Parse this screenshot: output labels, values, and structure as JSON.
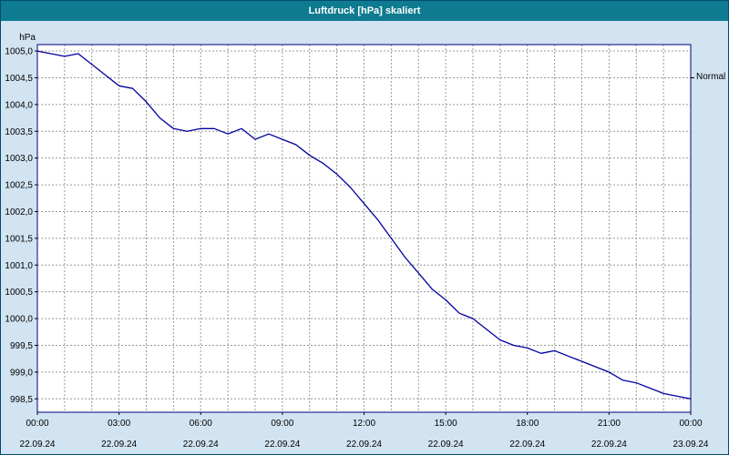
{
  "window": {
    "title": "Luftdruck [hPa] skaliert"
  },
  "colors": {
    "titlebar": "#0e7b90",
    "window_bg": "#d2e4f2",
    "plot_bg": "#ffffff",
    "plot_border": "#000080",
    "grid": "#9a9a9a",
    "line": "#0000a0",
    "text": "#000000"
  },
  "normal_marker": {
    "label": "Normal",
    "value": 1004.5
  },
  "chart_data": {
    "type": "line",
    "title": "Luftdruck [hPa] skaliert",
    "ylabel": "hPa",
    "xlabel": "",
    "grid": true,
    "legend_position": "none",
    "ylim": [
      998.25,
      1005.12
    ],
    "xlim_hours": [
      0,
      24
    ],
    "y_ticks": [
      {
        "value": 998.5,
        "label": "998,5"
      },
      {
        "value": 999.0,
        "label": "999,0"
      },
      {
        "value": 999.5,
        "label": "999,5"
      },
      {
        "value": 1000.0,
        "label": "1000,0"
      },
      {
        "value": 1000.5,
        "label": "1000,5"
      },
      {
        "value": 1001.0,
        "label": "1001,0"
      },
      {
        "value": 1001.5,
        "label": "1001,5"
      },
      {
        "value": 1002.0,
        "label": "1002,0"
      },
      {
        "value": 1002.5,
        "label": "1002,5"
      },
      {
        "value": 1003.0,
        "label": "1003,0"
      },
      {
        "value": 1003.5,
        "label": "1003,5"
      },
      {
        "value": 1004.0,
        "label": "1004,0"
      },
      {
        "value": 1004.5,
        "label": "1004,5"
      },
      {
        "value": 1005.0,
        "label": "1005,0"
      }
    ],
    "x_ticks": [
      {
        "hour": 0,
        "time": "00:00",
        "date": "22.09.24"
      },
      {
        "hour": 3,
        "time": "03:00",
        "date": "22.09.24"
      },
      {
        "hour": 6,
        "time": "06:00",
        "date": "22.09.24"
      },
      {
        "hour": 9,
        "time": "09:00",
        "date": "22.09.24"
      },
      {
        "hour": 12,
        "time": "12:00",
        "date": "22.09.24"
      },
      {
        "hour": 15,
        "time": "15:00",
        "date": "22.09.24"
      },
      {
        "hour": 18,
        "time": "18:00",
        "date": "22.09.24"
      },
      {
        "hour": 21,
        "time": "21:00",
        "date": "22.09.24"
      },
      {
        "hour": 24,
        "time": "00:00",
        "date": "23.09.24"
      }
    ],
    "series": [
      {
        "name": "Luftdruck",
        "x": [
          0,
          0.5,
          1,
          1.5,
          2,
          2.5,
          3,
          3.5,
          4,
          4.5,
          5,
          5.5,
          6,
          6.5,
          7,
          7.5,
          8,
          8.5,
          9,
          9.5,
          10,
          10.5,
          11,
          11.5,
          12,
          12.5,
          13,
          13.5,
          14,
          14.5,
          15,
          15.5,
          16,
          16.5,
          17,
          17.5,
          18,
          18.5,
          19,
          19.5,
          20,
          20.5,
          21,
          21.5,
          22,
          22.5,
          23,
          23.5,
          24
        ],
        "values": [
          1005.0,
          1004.95,
          1004.9,
          1004.95,
          1004.75,
          1004.55,
          1004.35,
          1004.3,
          1004.05,
          1003.75,
          1003.55,
          1003.5,
          1003.55,
          1003.55,
          1003.45,
          1003.55,
          1003.35,
          1003.45,
          1003.35,
          1003.25,
          1003.05,
          1002.9,
          1002.7,
          1002.45,
          1002.15,
          1001.85,
          1001.5,
          1001.15,
          1000.85,
          1000.55,
          1000.35,
          1000.1,
          1000.0,
          999.8,
          999.6,
          999.5,
          999.45,
          999.35,
          999.4,
          999.3,
          999.2,
          999.1,
          999.0,
          998.85,
          998.8,
          998.7,
          998.6,
          998.55,
          998.5
        ]
      }
    ]
  }
}
